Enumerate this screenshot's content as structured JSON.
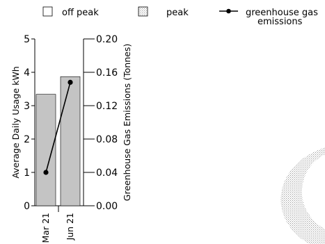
{
  "chart_data": {
    "type": "bar",
    "categories": [
      "Mar 21",
      "Jun 21"
    ],
    "series": [
      {
        "name": "off peak",
        "kind": "bar",
        "axis": "left",
        "values": [
          0,
          0
        ]
      },
      {
        "name": "peak",
        "kind": "bar",
        "axis": "left",
        "values": [
          3.34,
          3.87
        ]
      },
      {
        "name": "greenhouse gas emissions",
        "kind": "line",
        "axis": "right",
        "values": [
          0.04,
          0.148
        ]
      }
    ],
    "ylabel_left": "Average Daily Usage kWh",
    "ylabel_right": "Greenhouse Gas Emissions (Tonnes)",
    "ylim_left": [
      0,
      5
    ],
    "ylim_right": [
      0,
      0.2
    ],
    "yticks_left": [
      "0",
      "1",
      "2",
      "3",
      "4",
      "5"
    ],
    "yticks_right": [
      "0.00",
      "0.04",
      "0.08",
      "0.12",
      "0.16",
      "0.20"
    ],
    "grid": false,
    "legend_placement": "top",
    "colors": {
      "off_peak": "#ffffff",
      "peak": "#c4c4c4",
      "line": "#000000",
      "decor": "#d8d8d8"
    }
  }
}
